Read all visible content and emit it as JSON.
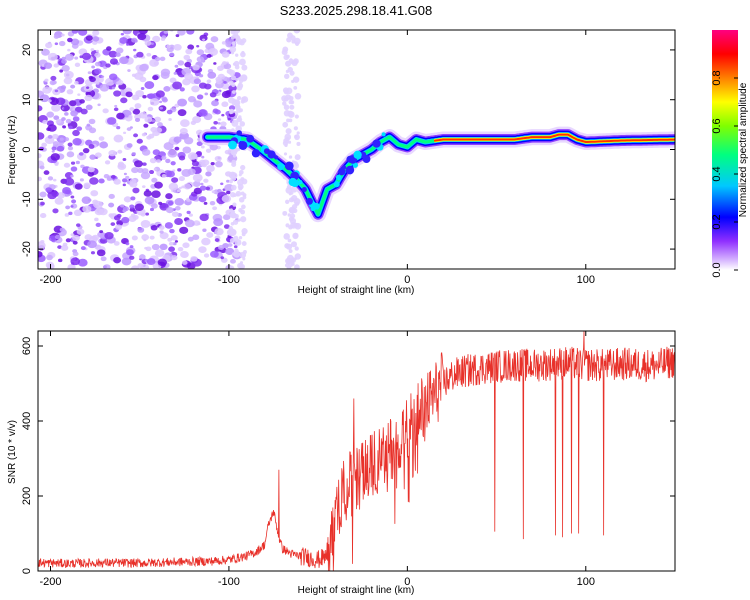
{
  "chart_data": [
    {
      "type": "heatmap",
      "title": "S233.2025.298.18.41.G08",
      "xlabel": "Height of straight line (km)",
      "ylabel": "Frequency (Hz)",
      "xlim": [
        -207,
        150
      ],
      "ylim": [
        -24,
        24
      ],
      "xticks": [
        -200,
        -100,
        0,
        100
      ],
      "xtick_labels": [
        "-200",
        "-100",
        "0",
        "100"
      ],
      "yticks": [
        -20,
        -10,
        0,
        10,
        20
      ],
      "ytick_labels": [
        "-20",
        "-10",
        "0",
        "10",
        "20"
      ],
      "colorbar": {
        "label": "Normalized spectral amplitude",
        "range": [
          0,
          1
        ],
        "ticks": [
          0,
          0.2,
          0.4,
          0.6,
          0.8
        ],
        "tick_labels": [
          "0.0",
          "0.2",
          "0.4",
          "0.6",
          "0.8"
        ],
        "colors": [
          "#ffffff",
          "#b060ff",
          "#0000ff",
          "#00ffff",
          "#00ff00",
          "#ffff00",
          "#ff8000",
          "#ff0000",
          "#ff00a0"
        ]
      },
      "noise_region_km": [
        -207,
        -95
      ],
      "ridge": {
        "x": [
          -112,
          -100,
          -90,
          -82,
          -75,
          -68,
          -62,
          -57,
          -53,
          -50,
          -45,
          -40,
          -35,
          -30,
          -25,
          -20,
          -15,
          -10,
          -5,
          0,
          5,
          10,
          20,
          40,
          60,
          70,
          80,
          85,
          90,
          95,
          100,
          120,
          150
        ],
        "y": [
          2.5,
          2.5,
          2,
          0,
          -2,
          -4,
          -6,
          -8,
          -11,
          -13,
          -8,
          -7,
          -4,
          -2,
          -1,
          0,
          1.5,
          2.5,
          1,
          0.5,
          2,
          1.5,
          2,
          2,
          2,
          2.5,
          2.5,
          3,
          3,
          2,
          1.5,
          1.8,
          2
        ]
      }
    },
    {
      "type": "line",
      "xlabel": "Height of straight line (km)",
      "ylabel": "SNR (10 * v/v)",
      "xlim": [
        -207,
        150
      ],
      "ylim": [
        0,
        640
      ],
      "xticks": [
        -200,
        -100,
        0,
        100
      ],
      "xtick_labels": [
        "-200",
        "-100",
        "0",
        "100"
      ],
      "yticks": [
        0,
        200,
        400,
        600
      ],
      "ytick_labels": [
        "0",
        "200",
        "400",
        "600"
      ],
      "series": [
        {
          "name": "SNR",
          "color": "#e8312a",
          "x": [
            -207,
            -190,
            -170,
            -150,
            -130,
            -110,
            -100,
            -95,
            -90,
            -85,
            -80,
            -78,
            -75,
            -72,
            -70,
            -65,
            -60,
            -55,
            -50,
            -45,
            -43,
            -40,
            -38,
            -35,
            -30,
            -25,
            -20,
            -15,
            -10,
            -5,
            0,
            5,
            10,
            15,
            20,
            25,
            30,
            40,
            50,
            60,
            70,
            80,
            90,
            100,
            110,
            120,
            130,
            140,
            150
          ],
          "y": [
            22,
            20,
            22,
            21,
            24,
            26,
            30,
            35,
            40,
            50,
            70,
            120,
            160,
            90,
            60,
            45,
            40,
            35,
            30,
            40,
            60,
            120,
            180,
            220,
            240,
            260,
            280,
            300,
            320,
            360,
            380,
            410,
            440,
            470,
            500,
            520,
            530,
            540,
            545,
            550,
            548,
            552,
            555,
            550,
            548,
            552,
            550,
            548,
            560
          ]
        }
      ],
      "dips": [
        {
          "x": 49,
          "y": 105
        },
        {
          "x": 65,
          "y": 85
        },
        {
          "x": 83,
          "y": 95
        },
        {
          "x": 87,
          "y": 90
        },
        {
          "x": 92,
          "y": 100
        },
        {
          "x": 96,
          "y": 100
        },
        {
          "x": 110,
          "y": 95
        }
      ],
      "spikes": [
        {
          "x": -72,
          "y": 270
        },
        {
          "x": -30,
          "y": 460
        },
        {
          "x": 99,
          "y": 640
        }
      ]
    }
  ]
}
